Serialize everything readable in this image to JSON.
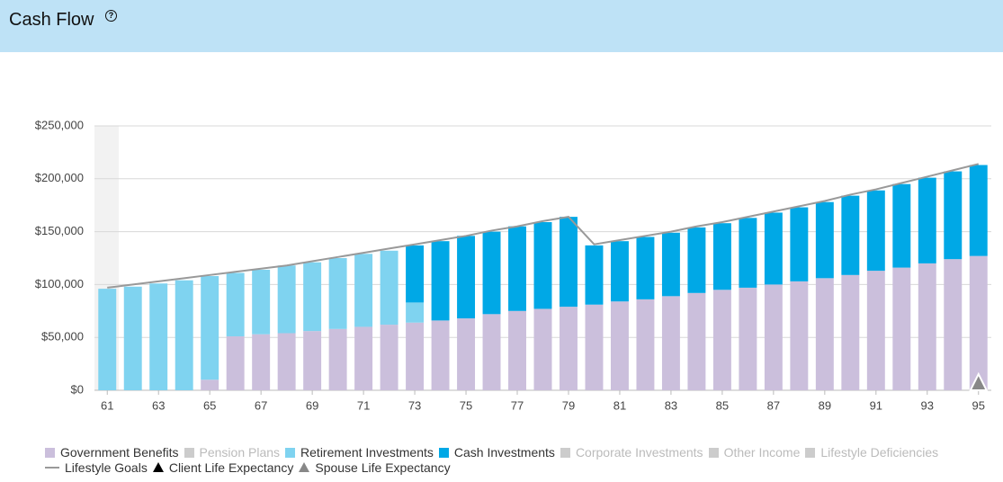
{
  "chart_data": {
    "type": "bar",
    "stacked": true,
    "title": "Cash Flow",
    "x": [
      61,
      62,
      63,
      64,
      65,
      66,
      67,
      68,
      69,
      70,
      71,
      72,
      73,
      74,
      75,
      76,
      77,
      78,
      79,
      80,
      81,
      82,
      83,
      84,
      85,
      86,
      87,
      88,
      89,
      90,
      91,
      92,
      93,
      94,
      95
    ],
    "xlim": [
      60.5,
      95.5
    ],
    "xticks": [
      61,
      63,
      65,
      67,
      69,
      71,
      73,
      75,
      77,
      79,
      81,
      83,
      85,
      87,
      89,
      91,
      93,
      95
    ],
    "ylim": [
      0,
      250000
    ],
    "yticks": [
      {
        "value": 0,
        "label": "$0"
      },
      {
        "value": 50000,
        "label": "$50,000"
      },
      {
        "value": 100000,
        "label": "$100,000"
      },
      {
        "value": 150000,
        "label": "$150,000"
      },
      {
        "value": 200000,
        "label": "$200,000"
      },
      {
        "value": 250000,
        "label": "$250,000"
      }
    ],
    "grid": true,
    "series": [
      {
        "name": "Government Benefits",
        "color": "#cbbfdc",
        "values": [
          0,
          0,
          0,
          0,
          10000,
          51000,
          53000,
          54000,
          56000,
          58000,
          60000,
          62000,
          64000,
          66000,
          68000,
          72000,
          75000,
          77000,
          79000,
          81000,
          84000,
          86000,
          89000,
          92000,
          95000,
          97000,
          100000,
          103000,
          106000,
          109000,
          113000,
          116000,
          120000,
          124000,
          127000
        ]
      },
      {
        "name": "Retirement Investments",
        "color": "#7fd3f0",
        "values": [
          96000,
          98000,
          101000,
          104000,
          98000,
          60000,
          61000,
          64000,
          65000,
          67000,
          69000,
          70000,
          19000,
          0,
          0,
          0,
          0,
          0,
          0,
          0,
          0,
          0,
          0,
          0,
          0,
          0,
          0,
          0,
          0,
          0,
          0,
          0,
          0,
          0,
          0
        ]
      },
      {
        "name": "Cash Investments",
        "color": "#00a8e6",
        "values": [
          0,
          0,
          0,
          0,
          0,
          0,
          0,
          0,
          0,
          0,
          0,
          0,
          54000,
          75000,
          78000,
          78000,
          80000,
          82000,
          85000,
          56000,
          57000,
          59000,
          60000,
          62000,
          63000,
          66000,
          68000,
          70000,
          72000,
          75000,
          76000,
          79000,
          81000,
          83000,
          86000
        ]
      }
    ],
    "inactive_series": [
      "Pension Plans",
      "Corporate Investments",
      "Other Income",
      "Lifestyle Deficiencies"
    ],
    "inactive_color": "#cccccc",
    "line": {
      "name": "Lifestyle Goals",
      "color": "#999999",
      "values": [
        97000,
        100000,
        103000,
        106000,
        109000,
        112000,
        115000,
        118000,
        122000,
        126000,
        130000,
        134000,
        138000,
        142000,
        146000,
        151000,
        155000,
        160000,
        164000,
        138000,
        142000,
        146000,
        150000,
        155000,
        159000,
        164000,
        169000,
        174000,
        179000,
        185000,
        190000,
        196000,
        202000,
        208000,
        214000
      ]
    },
    "markers": [
      {
        "name": "Client Life Expectancy",
        "color": "#000000"
      },
      {
        "name": "Spouse Life Expectancy",
        "color": "#888888",
        "x": 95
      }
    ]
  }
}
